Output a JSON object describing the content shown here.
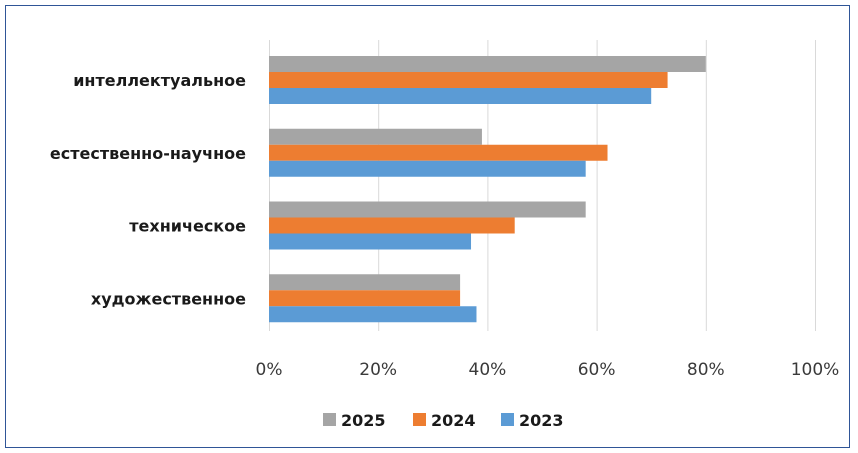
{
  "chart_data": {
    "type": "bar",
    "orientation": "horizontal",
    "categories": [
      "интеллектуальное",
      "естественно-научное",
      "техническое",
      "художественное"
    ],
    "series": [
      {
        "name": "2025",
        "color": "#a5a5a5",
        "values": [
          80,
          39,
          58,
          35
        ]
      },
      {
        "name": "2024",
        "color": "#ed7d31",
        "values": [
          73,
          62,
          45,
          35
        ]
      },
      {
        "name": "2023",
        "color": "#5b9bd5",
        "values": [
          70,
          58,
          37,
          38
        ]
      }
    ],
    "xlim": [
      0,
      100
    ],
    "x_ticks": [
      0,
      20,
      40,
      60,
      80,
      100
    ],
    "x_tick_labels": [
      "0%",
      "20%",
      "40%",
      "60%",
      "80%",
      "100%"
    ],
    "grid": "vertical",
    "legend_position": "bottom",
    "legend": [
      "2025",
      "2024",
      "2023"
    ]
  }
}
